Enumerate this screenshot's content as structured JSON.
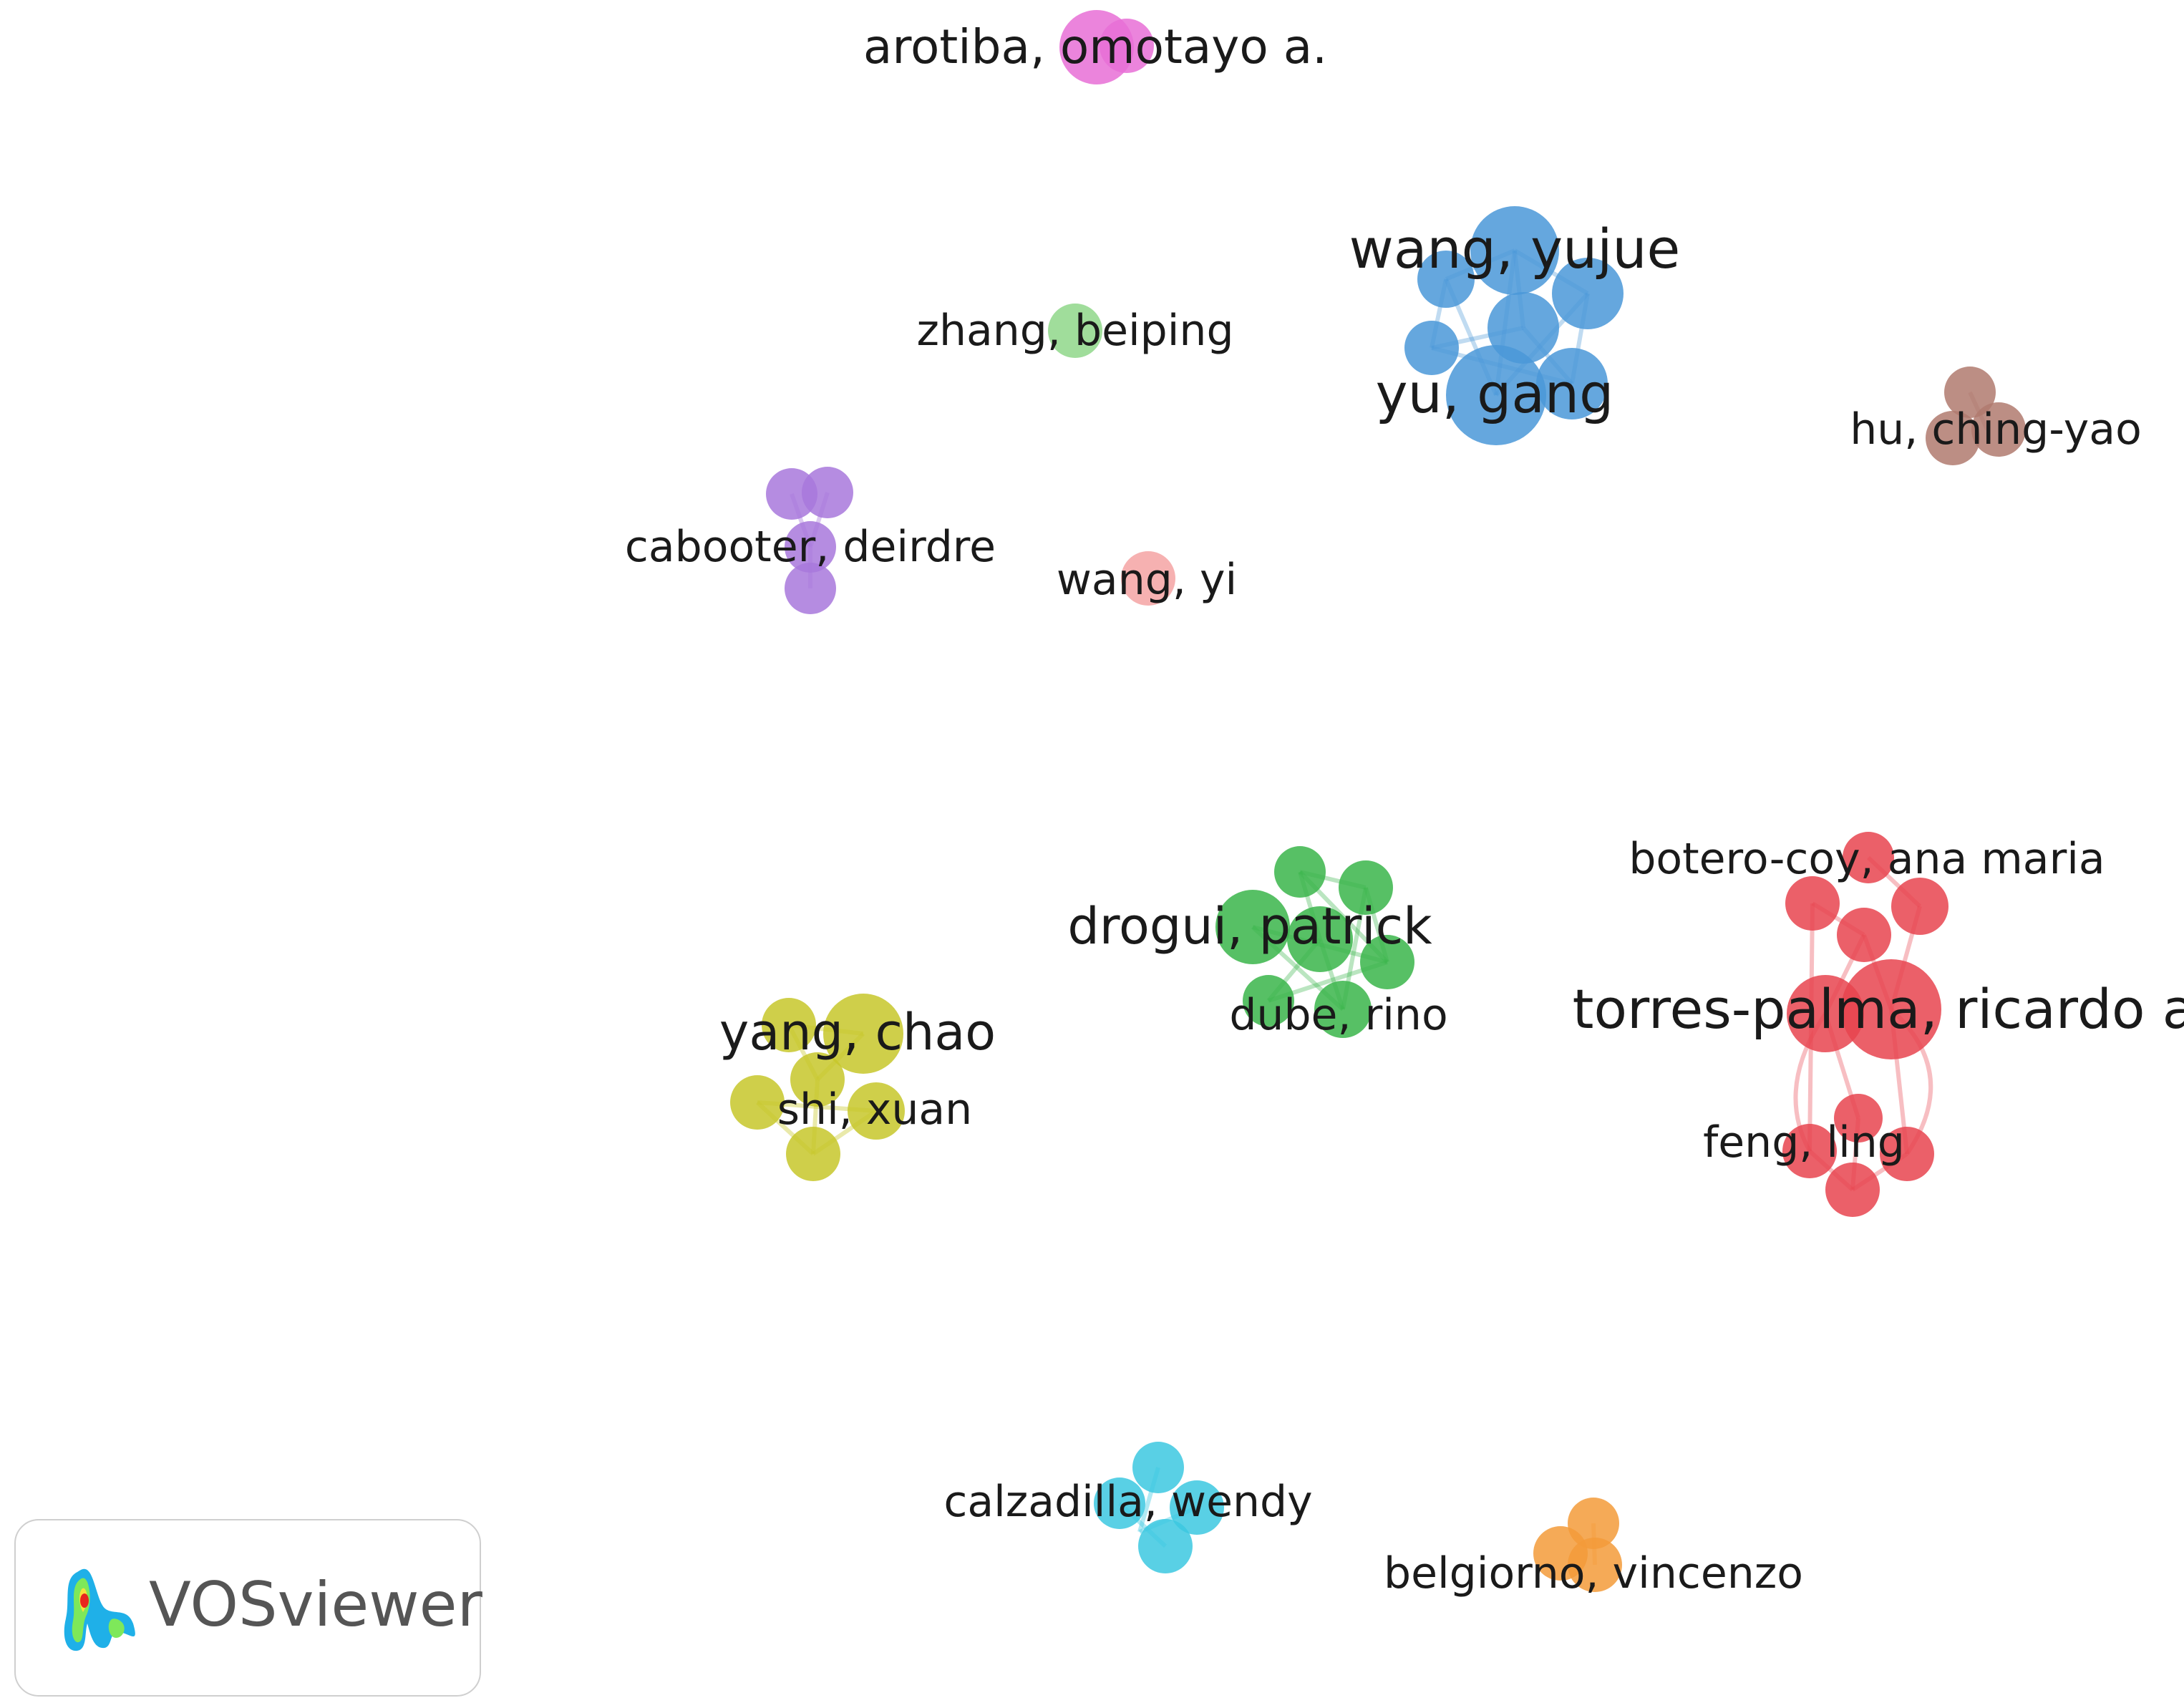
{
  "network": {
    "type": "co-authorship-network",
    "clusters": [
      {
        "name": "pink",
        "color": "#e86fd6",
        "labels": [
          "arotiba, omotayo a."
        ]
      },
      {
        "name": "blue",
        "color": "#4a98d8",
        "labels": [
          "wang, yujue",
          "yu, gang"
        ]
      },
      {
        "name": "light-green",
        "color": "#8fd78a",
        "labels": [
          "zhang, beiping"
        ]
      },
      {
        "name": "brown",
        "color": "#b07a6e",
        "labels": [
          "hu, ching-yao"
        ]
      },
      {
        "name": "purple",
        "color": "#a878dc",
        "labels": [
          "cabooter, deirdre"
        ]
      },
      {
        "name": "salmon",
        "color": "#f4a3a3",
        "labels": [
          "wang, yi"
        ]
      },
      {
        "name": "green",
        "color": "#3ab54a",
        "labels": [
          "drogui, patrick",
          "dube, rino"
        ]
      },
      {
        "name": "red",
        "color": "#e8444f",
        "labels": [
          "botero-coy, ana maria",
          "torres-palma, ricardo a.",
          "feng, ling"
        ]
      },
      {
        "name": "yellow",
        "color": "#c7c72a",
        "labels": [
          "yang, chao",
          "shi, xuan"
        ]
      },
      {
        "name": "cyan",
        "color": "#3cc8e0",
        "labels": [
          "calzadilla, wendy"
        ]
      },
      {
        "name": "orange",
        "color": "#f39b3a",
        "labels": [
          "belgiorno, vincenzo"
        ]
      }
    ]
  },
  "labels": {
    "arotiba": "arotiba, omotayo a.",
    "wang_yujue": "wang, yujue",
    "zhang": "zhang, beiping",
    "yu_gang": "yu, gang",
    "hu": "hu, ching-yao",
    "cabooter": "cabooter, deirdre",
    "wang_yi": "wang, yi",
    "botero": "botero-coy, ana maria",
    "drogui": "drogui, patrick",
    "torres": "torres-palma, ricardo a.",
    "dube": "dube, rino",
    "yang": "yang, chao",
    "shi": "shi, xuan",
    "feng": "feng, ling",
    "calzadilla": "calzadilla, wendy",
    "belgiorno": "belgiorno, vincenzo"
  },
  "brand": {
    "name": "VOSviewer"
  }
}
